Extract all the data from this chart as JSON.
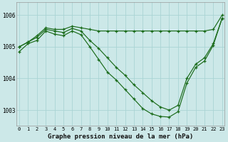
{
  "title": "Graphe pression niveau de la mer (hPa)",
  "bg_color": "#cce8e8",
  "grid_color": "#aad4d4",
  "line_color": "#1a6b1a",
  "x_labels": [
    "0",
    "1",
    "2",
    "3",
    "4",
    "5",
    "6",
    "7",
    "8",
    "9",
    "10",
    "11",
    "12",
    "13",
    "14",
    "15",
    "16",
    "17",
    "18",
    "19",
    "20",
    "21",
    "22",
    "23"
  ],
  "x_values": [
    0,
    1,
    2,
    3,
    4,
    5,
    6,
    7,
    8,
    9,
    10,
    11,
    12,
    13,
    14,
    15,
    16,
    17,
    18,
    19,
    20,
    21,
    22,
    23
  ],
  "ylim": [
    1002.5,
    1006.4
  ],
  "yticks": [
    1003,
    1004,
    1005,
    1006
  ],
  "series1": [
    1005.0,
    1005.15,
    1005.35,
    1005.6,
    1005.55,
    1005.55,
    1005.65,
    1005.6,
    1005.55,
    1005.5,
    1005.5,
    1005.5,
    1005.5,
    1005.5,
    1005.5,
    1005.5,
    1005.5,
    1005.5,
    1005.5,
    1005.5,
    1005.5,
    1005.5,
    1005.55,
    1006.0
  ],
  "series2": [
    1005.0,
    1005.15,
    1005.3,
    1005.55,
    1005.5,
    1005.45,
    1005.58,
    1005.5,
    1005.2,
    1004.95,
    1004.65,
    1004.35,
    1004.1,
    1003.8,
    1003.55,
    1003.3,
    1003.1,
    1003.0,
    1003.15,
    1004.0,
    1004.45,
    1004.65,
    1005.1,
    1005.9
  ],
  "series3": [
    1004.85,
    1005.1,
    1005.2,
    1005.5,
    1005.4,
    1005.35,
    1005.5,
    1005.38,
    1005.0,
    1004.6,
    1004.2,
    1003.95,
    1003.65,
    1003.35,
    1003.05,
    1002.88,
    1002.8,
    1002.78,
    1002.95,
    1003.85,
    1004.35,
    1004.55,
    1005.05,
    1005.9
  ]
}
